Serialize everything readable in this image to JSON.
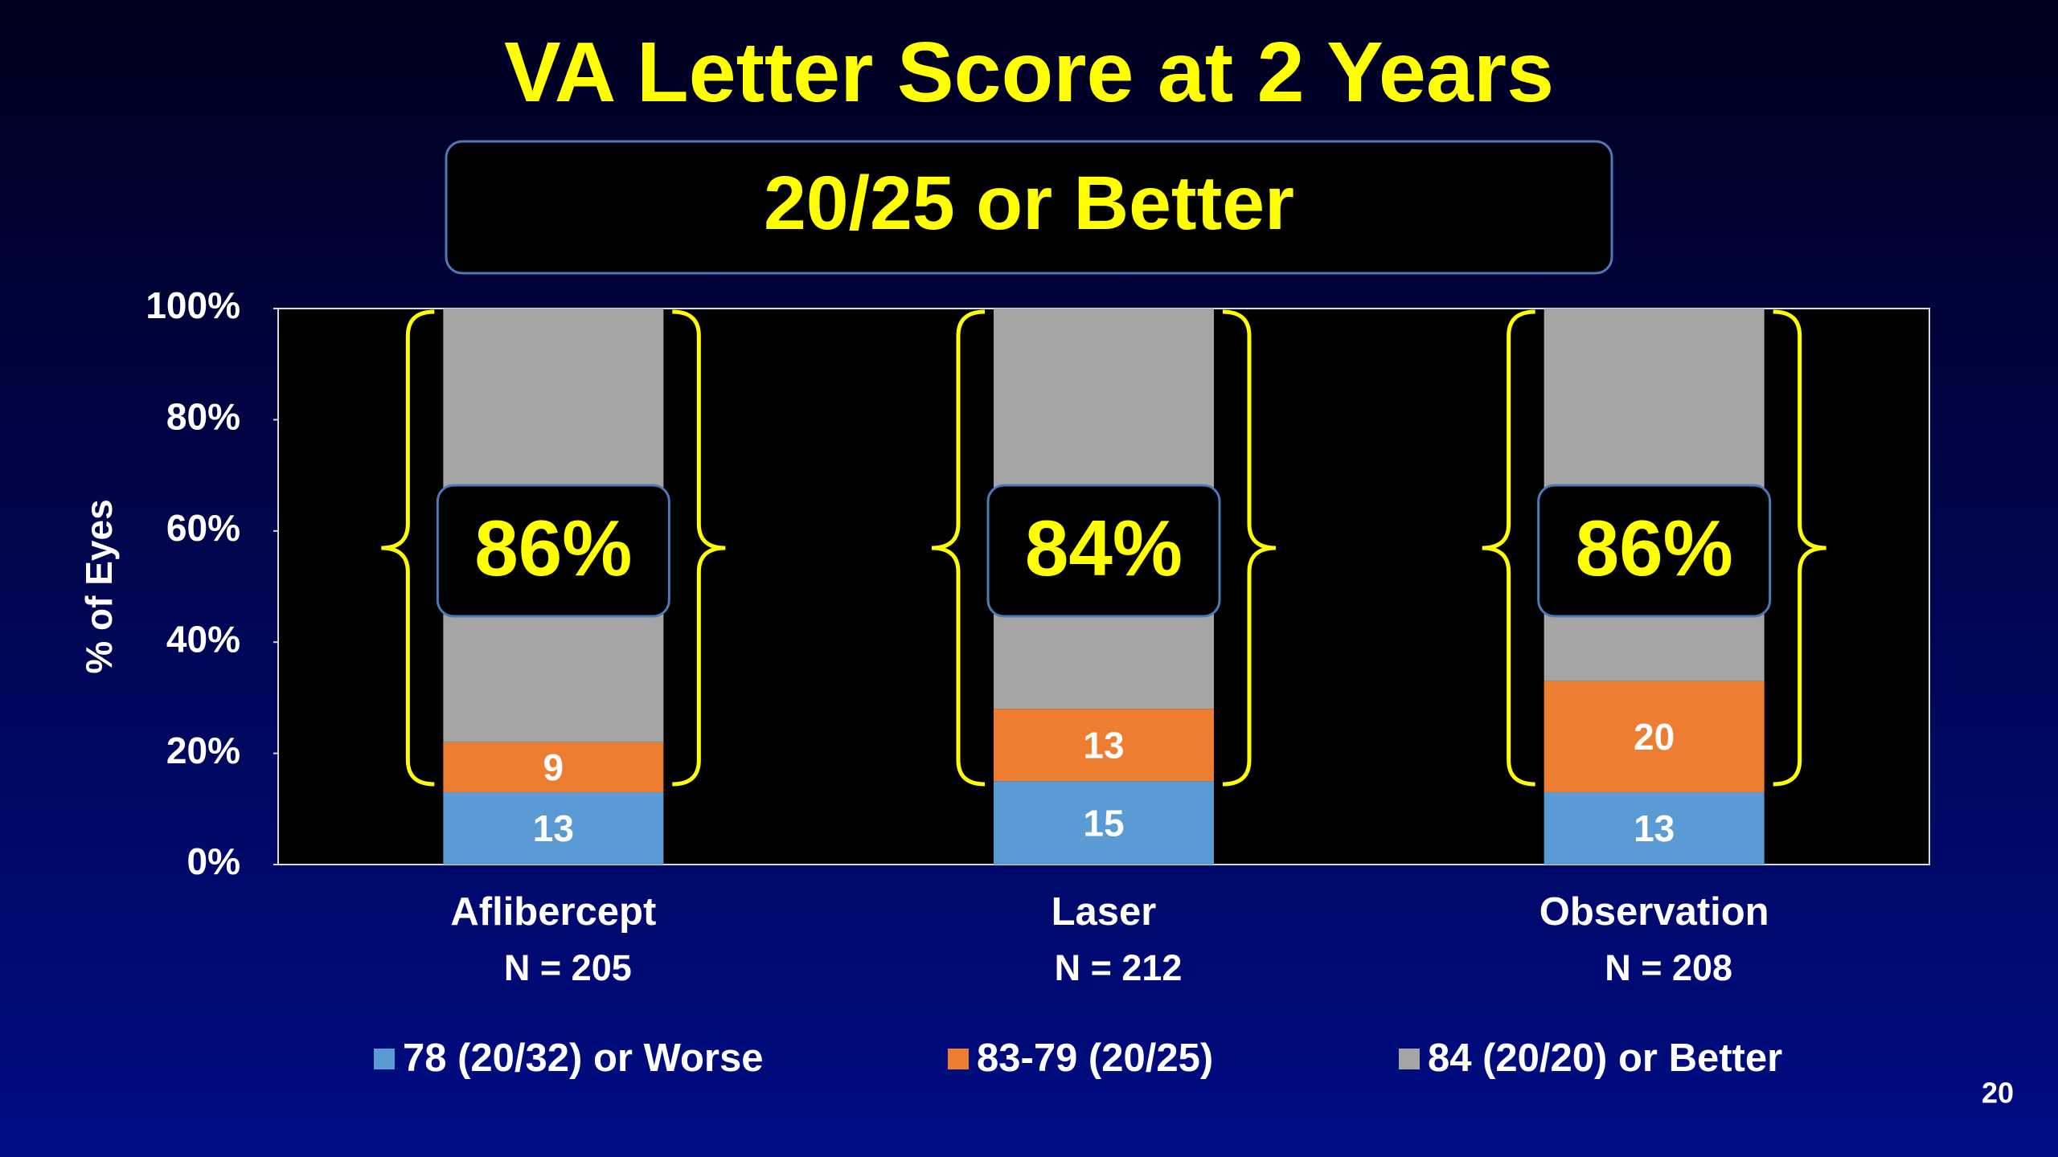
{
  "chart_data": {
    "type": "stacked_bar",
    "title": "VA Letter Score at 2 Years",
    "subtitle": "20/25 or Better",
    "ylabel": "% of Eyes",
    "categories": [
      "Aflibercept",
      "Laser",
      "Observation"
    ],
    "category_sublabels": [
      "N = 205",
      "N = 212",
      "N = 208"
    ],
    "series": [
      {
        "name": "78 (20/32) or Worse",
        "color": "#5b9bd5",
        "values": [
          13,
          15,
          13
        ],
        "data_labels": true
      },
      {
        "name": "83-79 (20/25)",
        "color": "#ed7d31",
        "values": [
          9,
          13,
          20
        ],
        "data_labels": true
      },
      {
        "name": "84 (20/20) or Better",
        "color": "#a5a5a5",
        "values": [
          78,
          72,
          67
        ],
        "data_labels": false
      }
    ],
    "bracket_labels": [
      "86%",
      "84%",
      "86%"
    ],
    "ylim": [
      0,
      100
    ],
    "yticks": [
      {
        "value": 0,
        "label": "0%"
      },
      {
        "value": 20,
        "label": "20%"
      },
      {
        "value": 40,
        "label": "40%"
      },
      {
        "value": 60,
        "label": "60%"
      },
      {
        "value": 80,
        "label": "80%"
      },
      {
        "value": 100,
        "label": "100%"
      }
    ],
    "grid": false,
    "legend": "bottom",
    "page_number": "20"
  }
}
